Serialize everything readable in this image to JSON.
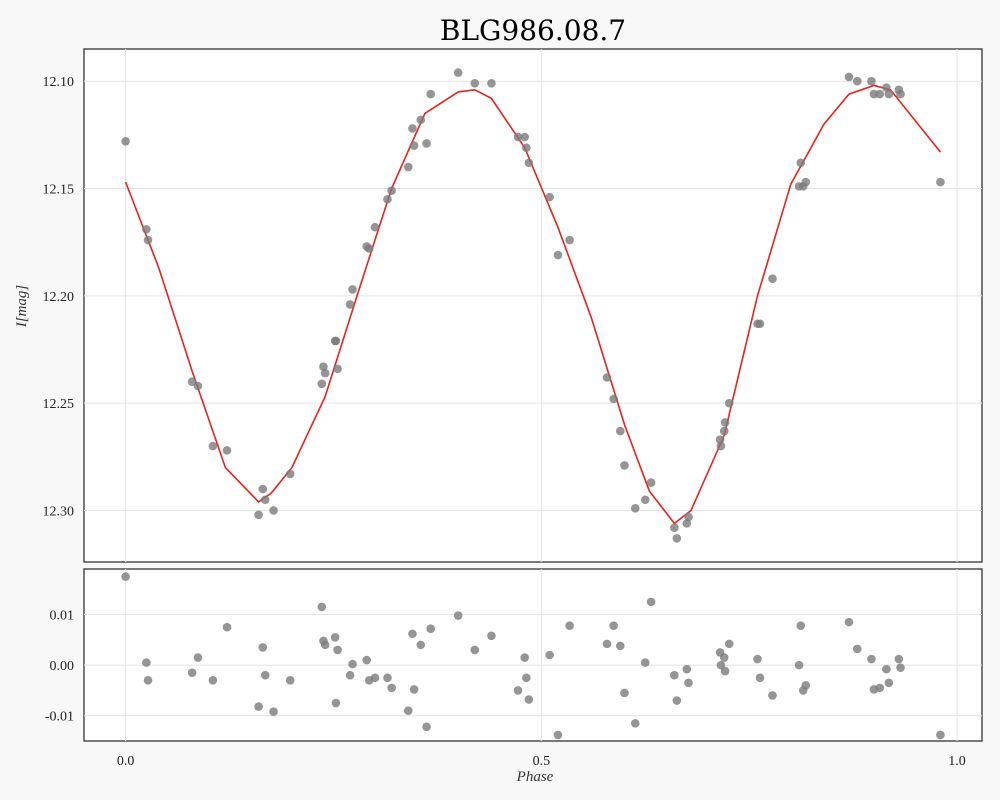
{
  "chart_data": [
    {
      "type": "scatter",
      "title": "BLG986.08.7",
      "ylabel": "I[mag]",
      "xlabel": "",
      "xlim": [
        -0.05,
        1.03
      ],
      "ylim": [
        12.324,
        12.085
      ],
      "inverted_y": true,
      "grid": true,
      "xticks": [
        0.0,
        0.5,
        1.0
      ],
      "yticks": [
        12.1,
        12.15,
        12.2,
        12.25,
        12.3
      ],
      "ytick_labels": [
        "12.10",
        "12.15",
        "12.20",
        "12.25",
        "12.30"
      ],
      "series": [
        {
          "kind": "points",
          "color": "#7a7a7a",
          "x": [
            0.0,
            0.025,
            0.027,
            0.08,
            0.087,
            0.105,
            0.122,
            0.16,
            0.165,
            0.168,
            0.178,
            0.198,
            0.236,
            0.238,
            0.24,
            0.252,
            0.253,
            0.255,
            0.27,
            0.273,
            0.29,
            0.293,
            0.3,
            0.315,
            0.32,
            0.34,
            0.345,
            0.347,
            0.355,
            0.362,
            0.367,
            0.4,
            0.42,
            0.44,
            0.472,
            0.48,
            0.482,
            0.485,
            0.51,
            0.52,
            0.534,
            0.579,
            0.587,
            0.595,
            0.6,
            0.613,
            0.625,
            0.632,
            0.66,
            0.663,
            0.675,
            0.677,
            0.715,
            0.716,
            0.72,
            0.721,
            0.726,
            0.76,
            0.763,
            0.778,
            0.81,
            0.812,
            0.815,
            0.818,
            0.87,
            0.88,
            0.897,
            0.9,
            0.907,
            0.915,
            0.918,
            0.93,
            0.932,
            0.98
          ],
          "y": [
            12.128,
            12.169,
            12.174,
            12.24,
            12.242,
            12.27,
            12.272,
            12.302,
            12.29,
            12.295,
            12.3,
            12.283,
            12.241,
            12.233,
            12.236,
            12.221,
            12.221,
            12.234,
            12.204,
            12.197,
            12.177,
            12.178,
            12.168,
            12.155,
            12.151,
            12.14,
            12.122,
            12.13,
            12.118,
            12.129,
            12.106,
            12.096,
            12.101,
            12.101,
            12.126,
            12.126,
            12.131,
            12.138,
            12.154,
            12.181,
            12.174,
            12.238,
            12.248,
            12.263,
            12.279,
            12.299,
            12.295,
            12.287,
            12.308,
            12.313,
            12.306,
            12.303,
            12.267,
            12.27,
            12.263,
            12.259,
            12.25,
            12.213,
            12.213,
            12.192,
            12.149,
            12.138,
            12.149,
            12.147,
            12.098,
            12.1,
            12.1,
            12.106,
            12.106,
            12.103,
            12.106,
            12.104,
            12.106,
            12.147
          ]
        },
        {
          "kind": "line",
          "color": "#e8221c",
          "x": [
            0.0,
            0.04,
            0.08,
            0.12,
            0.16,
            0.175,
            0.2,
            0.24,
            0.28,
            0.32,
            0.36,
            0.4,
            0.42,
            0.44,
            0.48,
            0.52,
            0.56,
            0.6,
            0.63,
            0.66,
            0.68,
            0.72,
            0.76,
            0.8,
            0.84,
            0.87,
            0.9,
            0.92,
            0.98
          ],
          "y": [
            12.147,
            12.187,
            12.235,
            12.28,
            12.296,
            12.292,
            12.28,
            12.247,
            12.198,
            12.15,
            12.115,
            12.105,
            12.104,
            12.108,
            12.131,
            12.168,
            12.21,
            12.26,
            12.291,
            12.306,
            12.3,
            12.265,
            12.2,
            12.148,
            12.12,
            12.106,
            12.102,
            12.104,
            12.133
          ]
        }
      ]
    },
    {
      "type": "scatter",
      "title": "",
      "xlabel": "Phase",
      "ylabel": "",
      "xlim": [
        -0.05,
        1.03
      ],
      "ylim": [
        -0.015,
        0.019
      ],
      "grid": true,
      "xticks": [
        0.0,
        0.5,
        1.0
      ],
      "xtick_labels": [
        "0.0",
        "0.5",
        "1.0"
      ],
      "yticks": [
        0.01,
        0.0,
        -0.01
      ],
      "ytick_labels": [
        "0.01",
        "0.00",
        "-0.01"
      ],
      "series": [
        {
          "kind": "points",
          "color": "#7a7a7a",
          "x": [
            0.0,
            0.025,
            0.027,
            0.08,
            0.087,
            0.105,
            0.122,
            0.16,
            0.165,
            0.168,
            0.178,
            0.198,
            0.236,
            0.238,
            0.24,
            0.252,
            0.253,
            0.255,
            0.27,
            0.273,
            0.29,
            0.293,
            0.3,
            0.315,
            0.32,
            0.34,
            0.345,
            0.347,
            0.355,
            0.362,
            0.367,
            0.4,
            0.42,
            0.44,
            0.472,
            0.48,
            0.482,
            0.485,
            0.51,
            0.52,
            0.534,
            0.579,
            0.587,
            0.595,
            0.6,
            0.613,
            0.625,
            0.632,
            0.66,
            0.663,
            0.675,
            0.677,
            0.715,
            0.716,
            0.72,
            0.721,
            0.726,
            0.76,
            0.763,
            0.778,
            0.81,
            0.812,
            0.815,
            0.818,
            0.87,
            0.88,
            0.897,
            0.9,
            0.907,
            0.915,
            0.918,
            0.93,
            0.932,
            0.98
          ],
          "y": [
            0.0175,
            0.0005,
            -0.003,
            -0.0015,
            0.0015,
            -0.003,
            0.0075,
            -0.0082,
            0.0035,
            -0.002,
            -0.0092,
            -0.003,
            0.0115,
            0.0048,
            0.004,
            0.0055,
            -0.0075,
            0.003,
            -0.002,
            0.0002,
            0.001,
            -0.003,
            -0.0025,
            -0.0025,
            -0.0045,
            -0.009,
            0.0062,
            -0.0048,
            0.004,
            -0.0122,
            0.0072,
            0.0098,
            0.003,
            0.0058,
            -0.005,
            0.0015,
            -0.0025,
            -0.0068,
            0.002,
            -0.0138,
            0.0078,
            0.0042,
            0.0078,
            0.0038,
            -0.0055,
            -0.0115,
            0.0005,
            0.0125,
            -0.002,
            -0.007,
            -0.0008,
            -0.0035,
            0.0025,
            0.0,
            0.0015,
            -0.0012,
            0.0042,
            0.0012,
            -0.0025,
            -0.006,
            0.0,
            0.0078,
            -0.005,
            -0.004,
            0.0085,
            0.0032,
            0.0012,
            -0.0048,
            -0.0045,
            -0.0008,
            -0.0035,
            0.0012,
            -0.0005,
            -0.0138
          ]
        }
      ]
    }
  ]
}
